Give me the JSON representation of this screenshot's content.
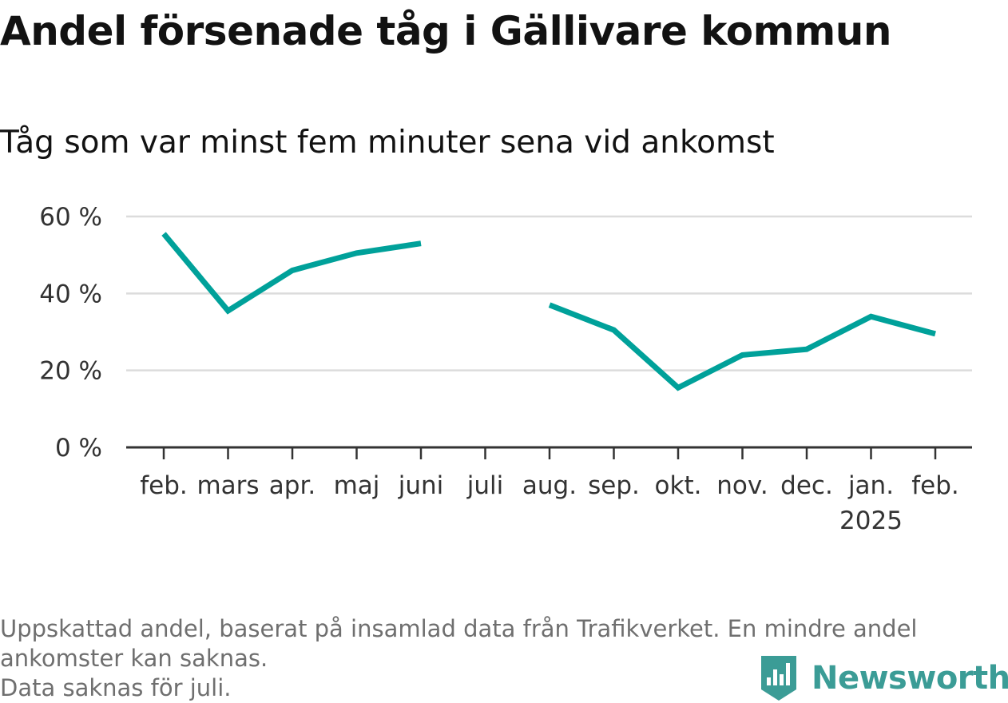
{
  "header": {
    "title": "Andel försenade tåg i Gällivare kommun",
    "subtitle": "Tåg som var minst fem minuter sena vid ankomst"
  },
  "chart_data": {
    "type": "line",
    "title": "Andel försenade tåg i Gällivare kommun",
    "subtitle": "Tåg som var minst fem minuter sena vid ankomst",
    "xlabel": "",
    "ylabel": "",
    "categories": [
      "feb.",
      "mars",
      "apr.",
      "maj",
      "juni",
      "juli",
      "aug.",
      "sep.",
      "okt.",
      "nov.",
      "dec.",
      "jan.",
      "feb."
    ],
    "category_sublabels": [
      "",
      "",
      "",
      "",
      "",
      "",
      "",
      "",
      "",
      "",
      "",
      "2025",
      ""
    ],
    "series": [
      {
        "values": [
          55.5,
          35.5,
          46,
          50.5,
          53,
          null,
          37,
          30.5,
          15.5,
          24,
          25.5,
          34,
          29.5
        ]
      }
    ],
    "ylim": [
      0,
      60
    ],
    "yticks": [
      0,
      20,
      40,
      60
    ],
    "ytick_labels": [
      "0 %",
      "20 %",
      "40 %",
      "60 %"
    ],
    "grid": true,
    "color": "#00a19a"
  },
  "footnote": {
    "line1": "Uppskattad andel, baserat på insamlad data från Trafikverket. En mindre andel",
    "line2": "ankomster kan saknas.",
    "line3": "Data saknas för juli."
  },
  "brand": {
    "name": "Newsworthy",
    "color": "#3b9c96",
    "icon": "bar-chart-icon"
  }
}
